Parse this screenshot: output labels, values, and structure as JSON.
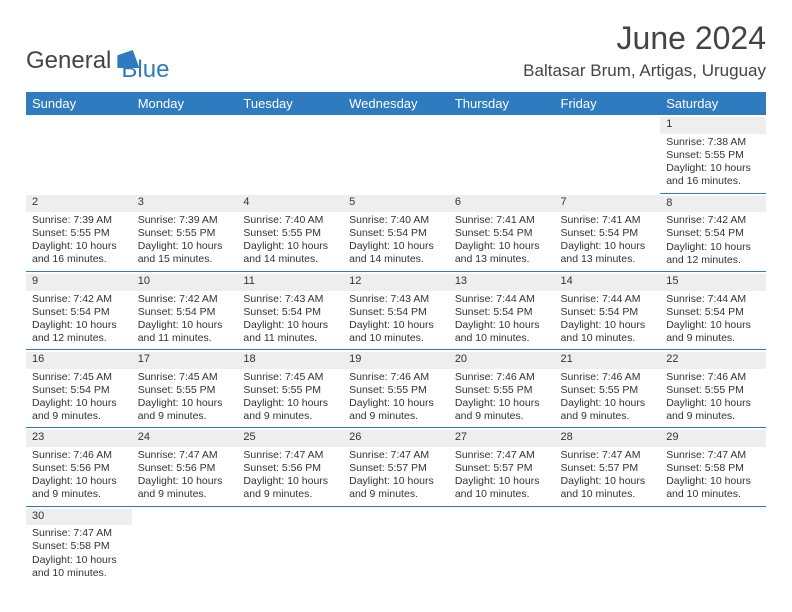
{
  "logo": {
    "part1": "General",
    "part2": "Blue"
  },
  "title": "June 2024",
  "location": "Baltasar Brum, Artigas, Uruguay",
  "colors": {
    "brand": "#2f7bbf",
    "header_bg": "#2f7bbf",
    "daynum_bg": "#eeeeee",
    "text": "#333333",
    "rule": "#2f7bbf"
  },
  "typography": {
    "title_fontsize": 32,
    "location_fontsize": 17,
    "header_fontsize": 13,
    "cell_fontsize": 10.5
  },
  "day_headers": [
    "Sunday",
    "Monday",
    "Tuesday",
    "Wednesday",
    "Thursday",
    "Friday",
    "Saturday"
  ],
  "weeks": [
    [
      null,
      null,
      null,
      null,
      null,
      null,
      {
        "n": "1",
        "sr": "Sunrise: 7:38 AM",
        "ss": "Sunset: 5:55 PM",
        "dl": "Daylight: 10 hours and 16 minutes."
      }
    ],
    [
      {
        "n": "2",
        "sr": "Sunrise: 7:39 AM",
        "ss": "Sunset: 5:55 PM",
        "dl": "Daylight: 10 hours and 16 minutes."
      },
      {
        "n": "3",
        "sr": "Sunrise: 7:39 AM",
        "ss": "Sunset: 5:55 PM",
        "dl": "Daylight: 10 hours and 15 minutes."
      },
      {
        "n": "4",
        "sr": "Sunrise: 7:40 AM",
        "ss": "Sunset: 5:55 PM",
        "dl": "Daylight: 10 hours and 14 minutes."
      },
      {
        "n": "5",
        "sr": "Sunrise: 7:40 AM",
        "ss": "Sunset: 5:54 PM",
        "dl": "Daylight: 10 hours and 14 minutes."
      },
      {
        "n": "6",
        "sr": "Sunrise: 7:41 AM",
        "ss": "Sunset: 5:54 PM",
        "dl": "Daylight: 10 hours and 13 minutes."
      },
      {
        "n": "7",
        "sr": "Sunrise: 7:41 AM",
        "ss": "Sunset: 5:54 PM",
        "dl": "Daylight: 10 hours and 13 minutes."
      },
      {
        "n": "8",
        "sr": "Sunrise: 7:42 AM",
        "ss": "Sunset: 5:54 PM",
        "dl": "Daylight: 10 hours and 12 minutes."
      }
    ],
    [
      {
        "n": "9",
        "sr": "Sunrise: 7:42 AM",
        "ss": "Sunset: 5:54 PM",
        "dl": "Daylight: 10 hours and 12 minutes."
      },
      {
        "n": "10",
        "sr": "Sunrise: 7:42 AM",
        "ss": "Sunset: 5:54 PM",
        "dl": "Daylight: 10 hours and 11 minutes."
      },
      {
        "n": "11",
        "sr": "Sunrise: 7:43 AM",
        "ss": "Sunset: 5:54 PM",
        "dl": "Daylight: 10 hours and 11 minutes."
      },
      {
        "n": "12",
        "sr": "Sunrise: 7:43 AM",
        "ss": "Sunset: 5:54 PM",
        "dl": "Daylight: 10 hours and 10 minutes."
      },
      {
        "n": "13",
        "sr": "Sunrise: 7:44 AM",
        "ss": "Sunset: 5:54 PM",
        "dl": "Daylight: 10 hours and 10 minutes."
      },
      {
        "n": "14",
        "sr": "Sunrise: 7:44 AM",
        "ss": "Sunset: 5:54 PM",
        "dl": "Daylight: 10 hours and 10 minutes."
      },
      {
        "n": "15",
        "sr": "Sunrise: 7:44 AM",
        "ss": "Sunset: 5:54 PM",
        "dl": "Daylight: 10 hours and 9 minutes."
      }
    ],
    [
      {
        "n": "16",
        "sr": "Sunrise: 7:45 AM",
        "ss": "Sunset: 5:54 PM",
        "dl": "Daylight: 10 hours and 9 minutes."
      },
      {
        "n": "17",
        "sr": "Sunrise: 7:45 AM",
        "ss": "Sunset: 5:55 PM",
        "dl": "Daylight: 10 hours and 9 minutes."
      },
      {
        "n": "18",
        "sr": "Sunrise: 7:45 AM",
        "ss": "Sunset: 5:55 PM",
        "dl": "Daylight: 10 hours and 9 minutes."
      },
      {
        "n": "19",
        "sr": "Sunrise: 7:46 AM",
        "ss": "Sunset: 5:55 PM",
        "dl": "Daylight: 10 hours and 9 minutes."
      },
      {
        "n": "20",
        "sr": "Sunrise: 7:46 AM",
        "ss": "Sunset: 5:55 PM",
        "dl": "Daylight: 10 hours and 9 minutes."
      },
      {
        "n": "21",
        "sr": "Sunrise: 7:46 AM",
        "ss": "Sunset: 5:55 PM",
        "dl": "Daylight: 10 hours and 9 minutes."
      },
      {
        "n": "22",
        "sr": "Sunrise: 7:46 AM",
        "ss": "Sunset: 5:55 PM",
        "dl": "Daylight: 10 hours and 9 minutes."
      }
    ],
    [
      {
        "n": "23",
        "sr": "Sunrise: 7:46 AM",
        "ss": "Sunset: 5:56 PM",
        "dl": "Daylight: 10 hours and 9 minutes."
      },
      {
        "n": "24",
        "sr": "Sunrise: 7:47 AM",
        "ss": "Sunset: 5:56 PM",
        "dl": "Daylight: 10 hours and 9 minutes."
      },
      {
        "n": "25",
        "sr": "Sunrise: 7:47 AM",
        "ss": "Sunset: 5:56 PM",
        "dl": "Daylight: 10 hours and 9 minutes."
      },
      {
        "n": "26",
        "sr": "Sunrise: 7:47 AM",
        "ss": "Sunset: 5:57 PM",
        "dl": "Daylight: 10 hours and 9 minutes."
      },
      {
        "n": "27",
        "sr": "Sunrise: 7:47 AM",
        "ss": "Sunset: 5:57 PM",
        "dl": "Daylight: 10 hours and 10 minutes."
      },
      {
        "n": "28",
        "sr": "Sunrise: 7:47 AM",
        "ss": "Sunset: 5:57 PM",
        "dl": "Daylight: 10 hours and 10 minutes."
      },
      {
        "n": "29",
        "sr": "Sunrise: 7:47 AM",
        "ss": "Sunset: 5:58 PM",
        "dl": "Daylight: 10 hours and 10 minutes."
      }
    ],
    [
      {
        "n": "30",
        "sr": "Sunrise: 7:47 AM",
        "ss": "Sunset: 5:58 PM",
        "dl": "Daylight: 10 hours and 10 minutes."
      },
      null,
      null,
      null,
      null,
      null,
      null
    ]
  ]
}
